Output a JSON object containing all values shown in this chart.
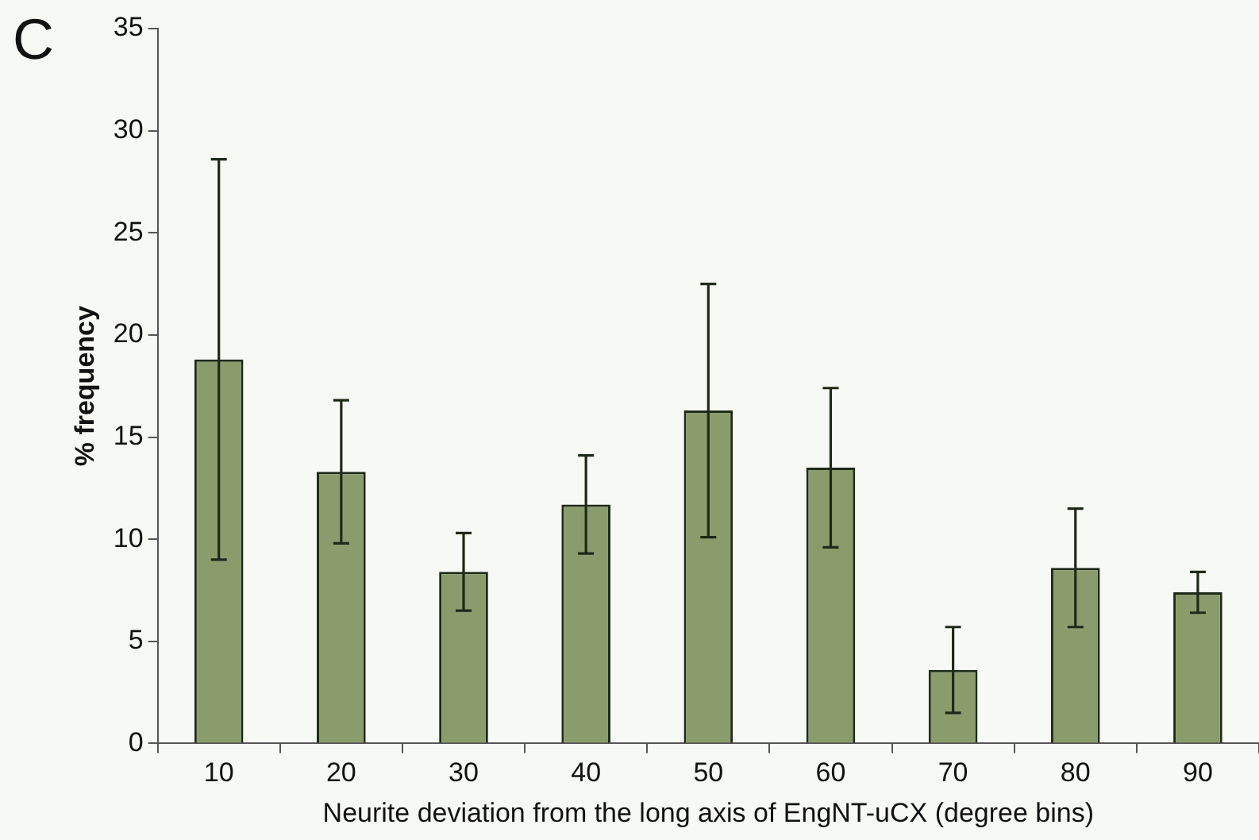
{
  "chart_data": {
    "type": "bar",
    "xlabel": "Neurite deviation from the long axis of EngNT-uCX (degree bins)",
    "ylabel": "% frequency",
    "annotations": [
      "C"
    ],
    "categories": [
      "10",
      "20",
      "30",
      "40",
      "50",
      "60",
      "70",
      "80",
      "90"
    ],
    "values": [
      18.8,
      13.3,
      8.4,
      11.7,
      16.3,
      13.5,
      3.6,
      8.6,
      7.4
    ],
    "errors": [
      9.8,
      3.5,
      1.9,
      2.4,
      6.2,
      3.9,
      2.1,
      2.9,
      1.0
    ],
    "color": "#8a9c6c",
    "ylim": [
      0,
      35
    ],
    "yticks": [
      0,
      5,
      10,
      15,
      20,
      25,
      30,
      35
    ],
    "grid": false,
    "legend": false
  }
}
